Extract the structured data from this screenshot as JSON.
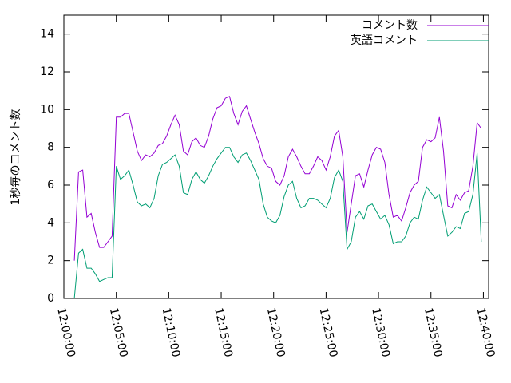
{
  "chart_data": {
    "type": "line",
    "y_label": "1秒毎のコメント数",
    "x": [
      "12:01:00",
      "12:01:24",
      "12:01:48",
      "12:02:12",
      "12:02:36",
      "12:03:00",
      "12:03:24",
      "12:03:48",
      "12:04:12",
      "12:04:36",
      "12:05:00",
      "12:05:24",
      "12:05:48",
      "12:06:12",
      "12:06:36",
      "12:07:00",
      "12:07:24",
      "12:07:48",
      "12:08:12",
      "12:08:36",
      "12:09:00",
      "12:09:24",
      "12:09:48",
      "12:10:12",
      "12:10:36",
      "12:11:00",
      "12:11:24",
      "12:11:48",
      "12:12:12",
      "12:12:36",
      "12:13:00",
      "12:13:24",
      "12:13:48",
      "12:14:12",
      "12:14:36",
      "12:15:00",
      "12:15:24",
      "12:15:48",
      "12:16:12",
      "12:16:36",
      "12:17:00",
      "12:17:24",
      "12:17:48",
      "12:18:12",
      "12:18:36",
      "12:19:00",
      "12:19:24",
      "12:19:48",
      "12:20:12",
      "12:20:36",
      "12:21:00",
      "12:21:24",
      "12:21:48",
      "12:22:12",
      "12:22:36",
      "12:23:00",
      "12:23:24",
      "12:23:48",
      "12:24:12",
      "12:24:36",
      "12:25:00",
      "12:25:24",
      "12:25:48",
      "12:26:12",
      "12:26:36",
      "12:27:00",
      "12:27:24",
      "12:27:48",
      "12:28:12",
      "12:28:36",
      "12:29:00",
      "12:29:24",
      "12:29:48",
      "12:30:12",
      "12:30:36",
      "12:31:00",
      "12:31:24",
      "12:31:48",
      "12:32:12",
      "12:32:36",
      "12:33:00",
      "12:33:24",
      "12:33:48",
      "12:34:12",
      "12:34:36",
      "12:35:00",
      "12:35:24",
      "12:35:48",
      "12:36:12",
      "12:36:36",
      "12:37:00",
      "12:37:24",
      "12:37:48",
      "12:38:12",
      "12:38:36",
      "12:39:00",
      "12:39:24",
      "12:39:48"
    ],
    "series": [
      {
        "name": "コメント数",
        "color": "#9400d3",
        "values": [
          2.0,
          6.7,
          6.8,
          4.3,
          4.5,
          3.5,
          2.7,
          2.7,
          3.0,
          3.3,
          9.6,
          9.6,
          9.8,
          9.8,
          8.8,
          7.8,
          7.3,
          7.6,
          7.5,
          7.7,
          8.1,
          8.2,
          8.6,
          9.2,
          9.7,
          9.2,
          7.8,
          7.6,
          8.3,
          8.5,
          8.1,
          8.0,
          8.6,
          9.5,
          10.1,
          10.2,
          10.6,
          10.7,
          9.8,
          9.2,
          9.9,
          10.2,
          9.5,
          8.8,
          8.2,
          7.4,
          7.0,
          6.9,
          6.2,
          6.0,
          6.5,
          7.5,
          7.9,
          7.5,
          7.0,
          6.6,
          6.6,
          7.0,
          7.5,
          7.3,
          6.8,
          7.5,
          8.6,
          8.9,
          7.5,
          3.5,
          5.0,
          6.5,
          6.6,
          5.9,
          6.8,
          7.6,
          8.0,
          7.9,
          7.2,
          5.5,
          4.3,
          4.4,
          4.1,
          4.8,
          5.6,
          6.0,
          6.2,
          8.0,
          8.4,
          8.3,
          8.5,
          9.6,
          7.8,
          4.9,
          4.8,
          5.5,
          5.2,
          5.6,
          5.7,
          7.0,
          9.3,
          9.0
        ]
      },
      {
        "name": "英語コメント",
        "color": "#009e73",
        "values": [
          0,
          2.4,
          2.6,
          1.6,
          1.6,
          1.3,
          0.9,
          1.0,
          1.1,
          1.1,
          7.0,
          6.3,
          6.5,
          6.8,
          6.0,
          5.1,
          4.9,
          5.0,
          4.8,
          5.3,
          6.5,
          7.1,
          7.2,
          7.4,
          7.6,
          7.0,
          5.6,
          5.5,
          6.3,
          6.7,
          6.3,
          6.1,
          6.5,
          7.0,
          7.4,
          7.7,
          8.0,
          8.0,
          7.5,
          7.2,
          7.6,
          7.7,
          7.3,
          6.8,
          6.3,
          5.0,
          4.3,
          4.1,
          4.0,
          4.4,
          5.4,
          6.0,
          6.2,
          5.3,
          4.8,
          4.9,
          5.3,
          5.3,
          5.2,
          5.0,
          4.8,
          5.3,
          6.4,
          6.8,
          6.2,
          2.6,
          3.0,
          4.3,
          4.6,
          4.2,
          4.9,
          5.0,
          4.6,
          4.2,
          4.4,
          3.9,
          2.9,
          3.0,
          3.0,
          3.3,
          4.0,
          4.3,
          4.2,
          5.2,
          5.9,
          5.6,
          5.3,
          5.5,
          4.4,
          3.3,
          3.5,
          3.8,
          3.7,
          4.5,
          4.6,
          5.5,
          7.7,
          3.0
        ]
      }
    ],
    "xlim": [
      "12:00:00",
      "12:40:30"
    ],
    "xticks": [
      "12:00:00",
      "12:05:00",
      "12:10:00",
      "12:15:00",
      "12:20:00",
      "12:25:00",
      "12:30:00",
      "12:35:00",
      "12:40:00"
    ],
    "ylim": [
      0,
      15
    ],
    "yticks": [
      0,
      2,
      4,
      6,
      8,
      10,
      12,
      14
    ],
    "legend": "top-right"
  }
}
